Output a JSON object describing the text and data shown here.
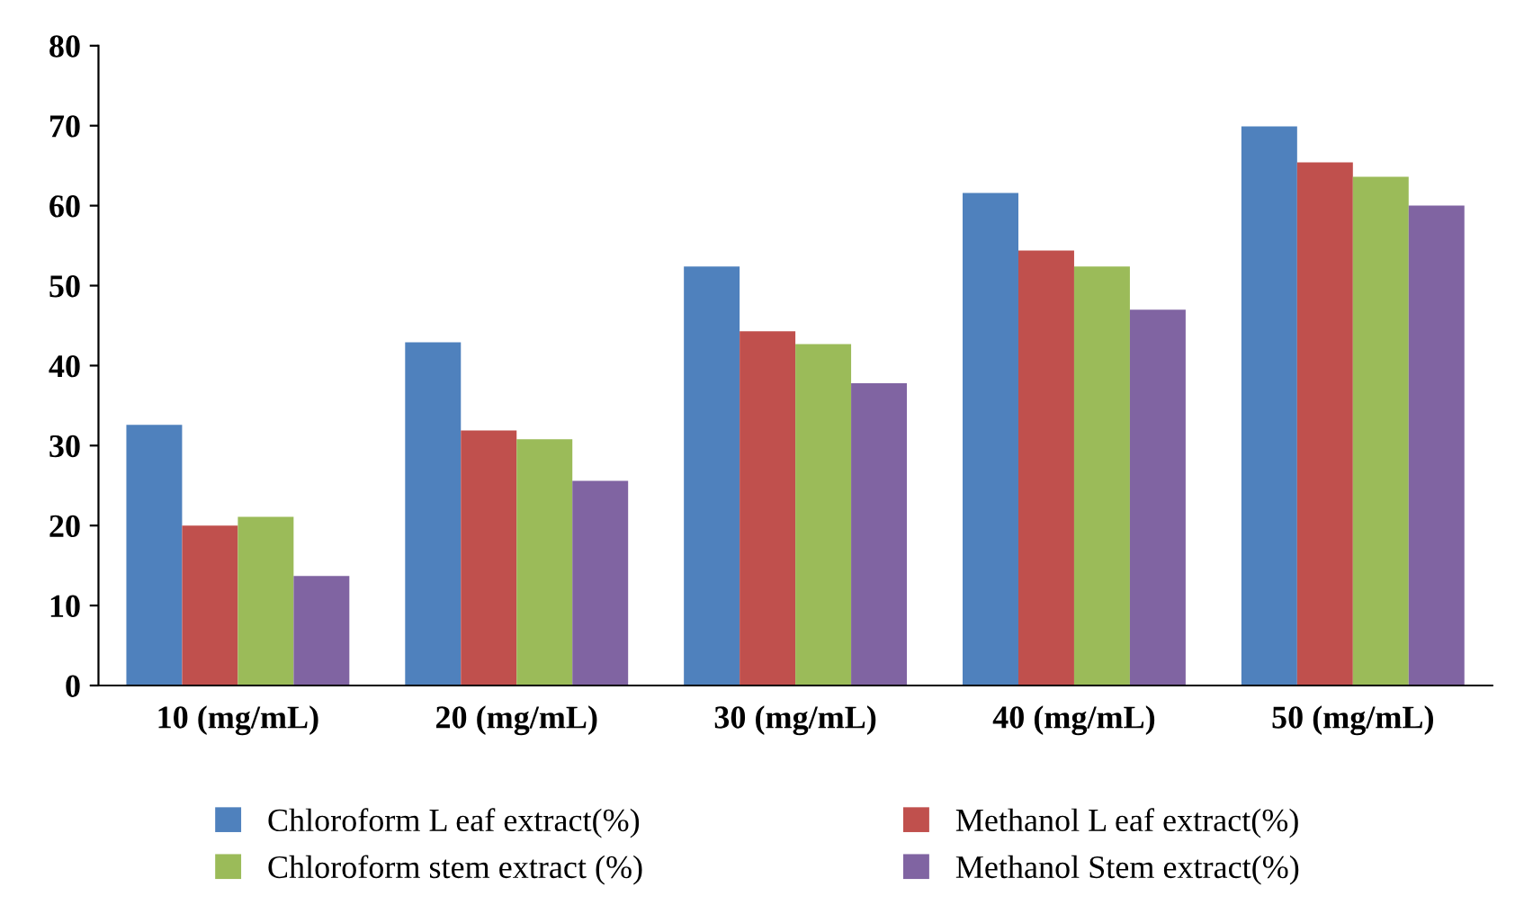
{
  "chart_data": {
    "type": "bar",
    "categories": [
      "10 (mg/mL)",
      "20 (mg/mL)",
      "30 (mg/mL)",
      "40 (mg/mL)",
      "50 (mg/mL)"
    ],
    "series": [
      {
        "name": "Chloroform L eaf extract(%)",
        "color": "#4f81bd",
        "values": [
          32.6,
          42.9,
          52.4,
          61.6,
          69.9
        ]
      },
      {
        "name": "Methanol L eaf extract(%)",
        "color": "#c0504d",
        "values": [
          20.0,
          31.9,
          44.3,
          54.4,
          65.4
        ]
      },
      {
        "name": "Chloroform stem extract (%)",
        "color": "#9bbb59",
        "values": [
          21.1,
          30.8,
          42.7,
          52.4,
          63.6
        ]
      },
      {
        "name": "Methanol Stem extract(%)",
        "color": "#8064a2",
        "values": [
          13.7,
          25.6,
          37.8,
          47.0,
          60.0
        ]
      }
    ],
    "ylim": [
      0,
      80
    ],
    "yticks": [
      0,
      10,
      20,
      30,
      40,
      50,
      60,
      70,
      80
    ],
    "grid": false,
    "legend": "bottom"
  }
}
